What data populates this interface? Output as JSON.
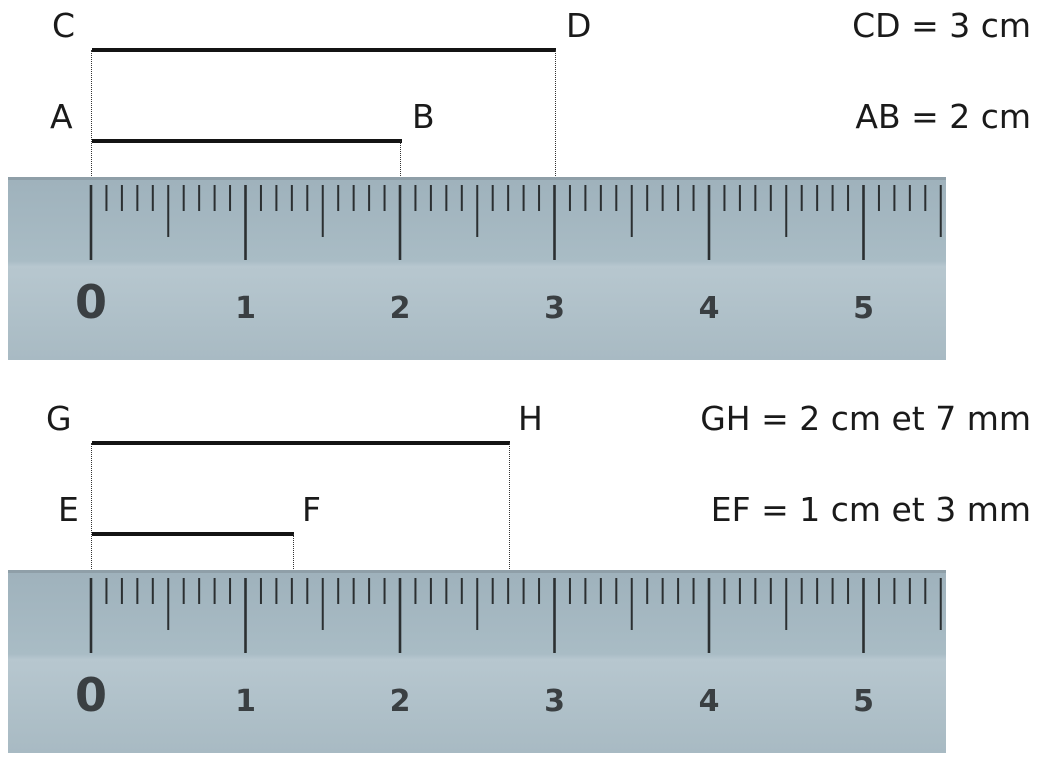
{
  "panels": [
    {
      "segments": [
        {
          "start_label": "C",
          "end_label": "D",
          "equation": "CD = 3 cm",
          "length_cm": 3.0
        },
        {
          "start_label": "A",
          "end_label": "B",
          "equation": "AB = 2 cm",
          "length_cm": 2.0
        }
      ]
    },
    {
      "segments": [
        {
          "start_label": "G",
          "end_label": "H",
          "equation": "GH = 2 cm et 7 mm",
          "length_cm": 2.7
        },
        {
          "start_label": "E",
          "end_label": "F",
          "equation": "EF = 1 cm et 3 mm",
          "length_cm": 1.3
        }
      ]
    }
  ],
  "ruler": {
    "numbers": [
      "0",
      "1",
      "2",
      "3",
      "4",
      "5"
    ],
    "colors": {
      "body": "#a8bac3",
      "ticks": "#2b2f31",
      "numbers": "#3a3f42"
    }
  }
}
